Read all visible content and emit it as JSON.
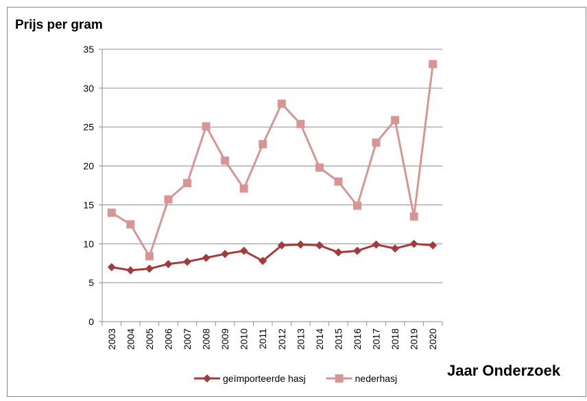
{
  "chart_data": {
    "type": "line",
    "title": "Prijs per gram",
    "x_label": "Jaar Onderzoek",
    "categories": [
      "2003",
      "2004",
      "2005",
      "2006",
      "2007",
      "2008",
      "2009",
      "2010",
      "2011",
      "2012",
      "2013",
      "2014",
      "2015",
      "2016",
      "2017",
      "2018",
      "2019",
      "2020"
    ],
    "series": [
      {
        "name": "geïmporteerde hasj",
        "color": "#a33b3b",
        "marker": "diamond",
        "values": [
          7.0,
          6.6,
          6.8,
          7.4,
          7.7,
          8.2,
          8.7,
          9.1,
          7.8,
          9.8,
          9.9,
          9.8,
          8.9,
          9.1,
          9.9,
          9.4,
          10.0,
          9.8
        ]
      },
      {
        "name": "nederhasj",
        "color": "#d99594",
        "marker": "square",
        "values": [
          14.0,
          12.5,
          8.4,
          15.7,
          17.8,
          25.1,
          20.7,
          17.1,
          22.8,
          28.0,
          25.4,
          19.8,
          18.0,
          14.9,
          23.0,
          25.9,
          13.5,
          33.1
        ]
      }
    ],
    "ylim": [
      0,
      35
    ],
    "yticks": [
      0,
      5,
      10,
      15,
      20,
      25,
      30,
      35
    ],
    "grid": true,
    "legend": "bottom"
  }
}
